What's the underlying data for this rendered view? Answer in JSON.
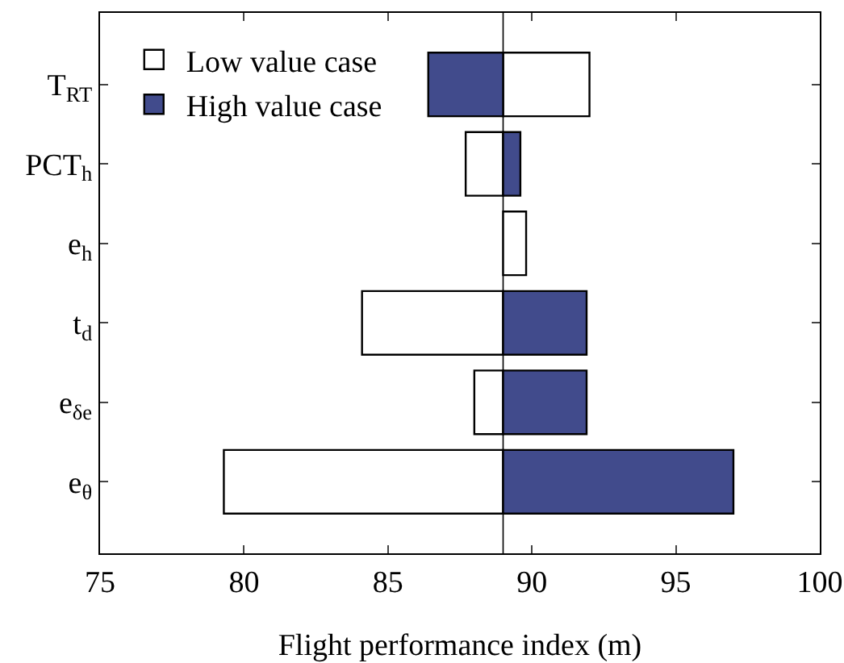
{
  "chart_data": {
    "type": "bar",
    "orientation": "horizontal",
    "xlabel": "Flight performance index (m)",
    "categories": [
      "T$_{RT}$",
      "PCT$_{h}$",
      "e$_{h}$",
      "t$_{d}$",
      "e$_{δe}$",
      "e$_{θ}$"
    ],
    "series": [
      {
        "name": "Low value case",
        "color": "#ffffff",
        "base": [
          89,
          89,
          89,
          89,
          89,
          89
        ],
        "values": [
          3.0,
          -1.3,
          0.8,
          -4.9,
          -1.0,
          -9.7
        ]
      },
      {
        "name": "High value case",
        "color": "#414b8c",
        "base": [
          89,
          89,
          null,
          89,
          89,
          89
        ],
        "values": [
          -2.6,
          0.6,
          null,
          2.9,
          2.9,
          8.0
        ]
      }
    ],
    "xlim": [
      75,
      100
    ],
    "xticks": [
      75,
      80,
      85,
      90,
      95,
      100
    ],
    "ref_lines": [
      {
        "axis": "x",
        "value": 89,
        "color": "#000000"
      }
    ],
    "grid": false,
    "legend": "top left"
  }
}
